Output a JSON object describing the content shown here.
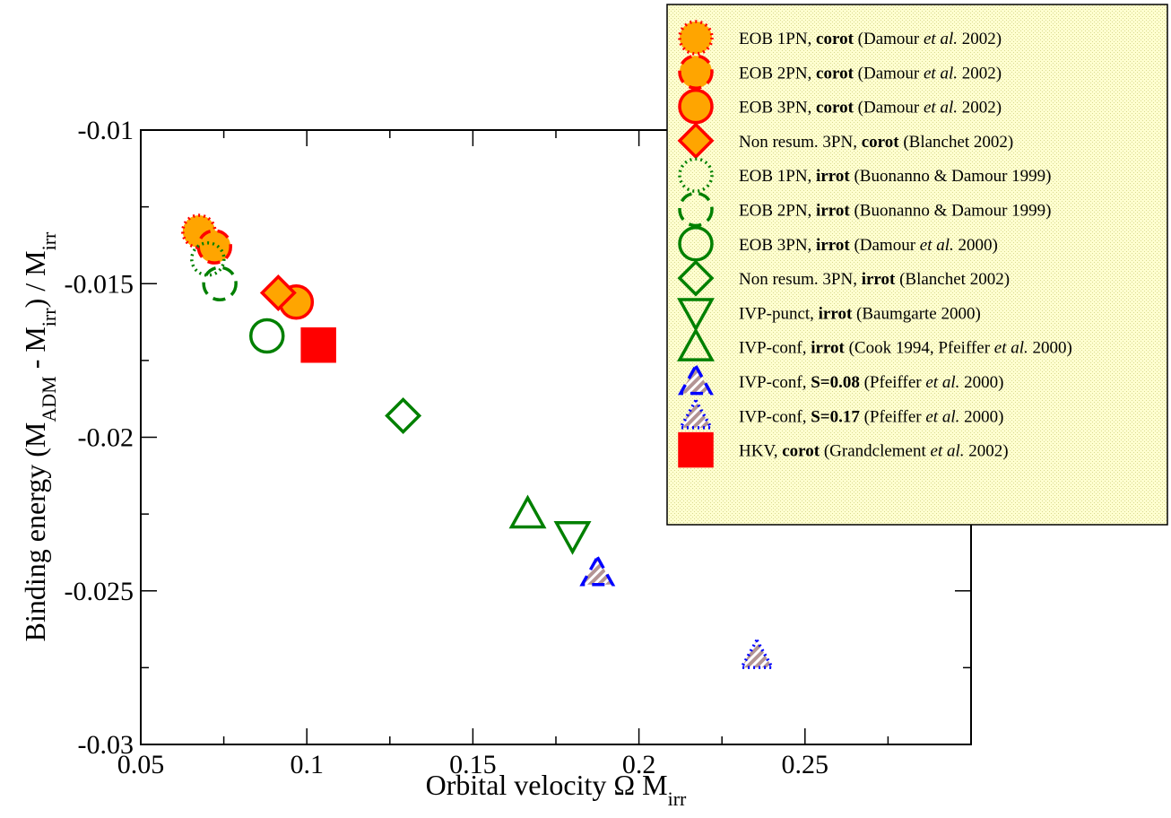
{
  "chart_data": {
    "type": "scatter",
    "title": "",
    "xlabel": {
      "main": "Orbital velocity  Ω M",
      "sub": "irr"
    },
    "ylabel": {
      "p1": "Binding energy  (M",
      "s1": "ADM",
      "p2": " - M",
      "s2": "irr",
      "p3": ") / M",
      "s3": "irr"
    },
    "xlim": [
      0.05,
      0.3
    ],
    "ylim": [
      -0.03,
      -0.01
    ],
    "xticks": [
      0.05,
      0.1,
      0.15,
      0.2,
      0.25
    ],
    "xtick_labels": [
      "0.05",
      "0.1",
      "0.15",
      "0.2",
      "0.25"
    ],
    "yticks": [
      -0.03,
      -0.025,
      -0.02,
      -0.015,
      -0.01
    ],
    "ytick_labels": [
      "-0.03",
      "-0.025",
      "-0.02",
      "-0.015",
      "-0.01"
    ],
    "grid": false,
    "legend_position": "top-right",
    "colors": {
      "orange": "#ffa500",
      "red": "#ff0000",
      "green": "#008000",
      "blue": "#0000ff",
      "hatch": "#b39494"
    },
    "series": [
      {
        "marker": "circle",
        "fill": "#ffa500",
        "stroke": "#ff0000",
        "dash": "dotted",
        "label": [
          [
            "EOB 1PN, ",
            ""
          ],
          [
            "corot",
            "b"
          ],
          [
            "  (Damour ",
            ""
          ],
          [
            "et al.",
            "i"
          ],
          [
            " 2002)",
            ""
          ]
        ],
        "points": [
          [
            0.0675,
            -0.0133
          ]
        ]
      },
      {
        "marker": "circle",
        "fill": "#ffa500",
        "stroke": "#ff0000",
        "dash": "dashed",
        "label": [
          [
            "EOB 2PN, ",
            ""
          ],
          [
            "corot",
            "b"
          ],
          [
            "  (Damour ",
            ""
          ],
          [
            "et al.",
            "i"
          ],
          [
            " 2002)",
            ""
          ]
        ],
        "points": [
          [
            0.0722,
            -0.0138
          ]
        ]
      },
      {
        "marker": "circle",
        "fill": "#ffa500",
        "stroke": "#ff0000",
        "dash": "solid",
        "label": [
          [
            "EOB 3PN, ",
            ""
          ],
          [
            "corot",
            "b"
          ],
          [
            "  (Damour ",
            ""
          ],
          [
            "et al.",
            "i"
          ],
          [
            " 2002)",
            ""
          ]
        ],
        "points": [
          [
            0.0968,
            -0.0156
          ]
        ]
      },
      {
        "marker": "diamond",
        "fill": "#ffa500",
        "stroke": "#ff0000",
        "dash": "solid",
        "label": [
          [
            "Non resum. 3PN, ",
            ""
          ],
          [
            "corot",
            "b"
          ],
          [
            " (Blanchet 2002)",
            ""
          ]
        ],
        "points": [
          [
            0.0914,
            -0.0153
          ]
        ]
      },
      {
        "marker": "circle",
        "fill": "none",
        "stroke": "#008000",
        "dash": "dotted",
        "label": [
          [
            "EOB 1PN, ",
            ""
          ],
          [
            "irrot",
            "b"
          ],
          [
            "  (Buonanno & Damour 1999)",
            ""
          ]
        ],
        "points": [
          [
            0.0702,
            -0.0142
          ]
        ]
      },
      {
        "marker": "circle",
        "fill": "none",
        "stroke": "#008000",
        "dash": "dashed",
        "label": [
          [
            "EOB 2PN, ",
            ""
          ],
          [
            "irrot",
            "b"
          ],
          [
            " (Buonanno & Damour 1999)",
            ""
          ]
        ],
        "points": [
          [
            0.0738,
            -0.015
          ]
        ]
      },
      {
        "marker": "circle",
        "fill": "none",
        "stroke": "#008000",
        "dash": "solid",
        "label": [
          [
            "EOB 3PN, ",
            ""
          ],
          [
            "irrot",
            "b"
          ],
          [
            " (Damour ",
            ""
          ],
          [
            "et al.",
            "i"
          ],
          [
            " 2000)",
            ""
          ]
        ],
        "points": [
          [
            0.088,
            -0.0167
          ]
        ]
      },
      {
        "marker": "diamond",
        "fill": "none",
        "stroke": "#008000",
        "dash": "solid",
        "label": [
          [
            "Non resum. 3PN, ",
            ""
          ],
          [
            "irrot",
            "b"
          ],
          [
            " (Blanchet 2002)",
            ""
          ]
        ],
        "points": [
          [
            0.129,
            -0.0193
          ]
        ]
      },
      {
        "marker": "triangle-down",
        "fill": "none",
        "stroke": "#008000",
        "dash": "solid",
        "label": [
          [
            "IVP-punct, ",
            ""
          ],
          [
            "irrot",
            "b"
          ],
          [
            " (Baumgarte 2000)",
            ""
          ]
        ],
        "points": [
          [
            0.18,
            -0.0232
          ]
        ]
      },
      {
        "marker": "triangle-up",
        "fill": "none",
        "stroke": "#008000",
        "dash": "solid",
        "label": [
          [
            "IVP-conf, ",
            ""
          ],
          [
            "irrot",
            "b"
          ],
          [
            " (Cook 1994, Pfeiffer ",
            ""
          ],
          [
            "et al.",
            "i"
          ],
          [
            " 2000)",
            ""
          ]
        ],
        "points": [
          [
            0.1665,
            -0.0225
          ]
        ]
      },
      {
        "marker": "triangle-up",
        "fill": "hatch",
        "stroke": "#0000ff",
        "dash": "dashed",
        "label": [
          [
            "IVP-conf, ",
            ""
          ],
          [
            "S=0.08",
            "b"
          ],
          [
            " (Pfeiffer ",
            ""
          ],
          [
            "et al.",
            "i"
          ],
          [
            " 2000)",
            ""
          ]
        ],
        "points": [
          [
            0.1875,
            -0.0244
          ]
        ]
      },
      {
        "marker": "triangle-up",
        "fill": "hatch",
        "stroke": "#0000ff",
        "dash": "dotted",
        "label": [
          [
            "IVP-conf, ",
            ""
          ],
          [
            "S=0.17",
            "b"
          ],
          [
            " (Pfeiffer ",
            ""
          ],
          [
            "et al.",
            "i"
          ],
          [
            " 2000)",
            ""
          ]
        ],
        "points": [
          [
            0.2355,
            -0.0271
          ]
        ]
      },
      {
        "marker": "square",
        "fill": "#ff0000",
        "stroke": "#ff0000",
        "dash": "solid",
        "label": [
          [
            "HKV, ",
            ""
          ],
          [
            "corot",
            "b"
          ],
          [
            "  (Grandclement ",
            ""
          ],
          [
            "et al.",
            "i"
          ],
          [
            " 2002)",
            ""
          ]
        ],
        "points": [
          [
            0.1035,
            -0.017
          ]
        ]
      }
    ]
  }
}
